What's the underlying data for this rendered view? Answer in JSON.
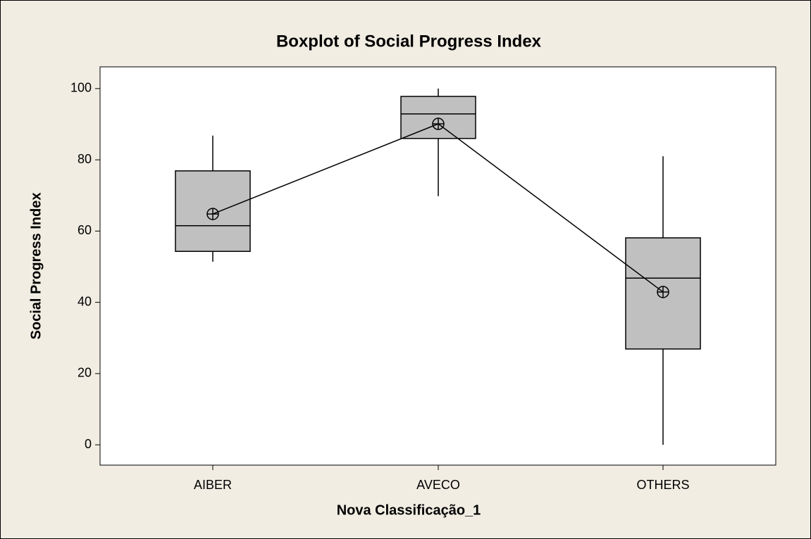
{
  "chart_data": {
    "type": "box",
    "title": "Boxplot of Social Progress Index",
    "xlabel": "Nova Classificação_1",
    "ylabel": "Social Progress Index",
    "categories": [
      "AIBER",
      "AVECO",
      "OTHERS"
    ],
    "boxes": [
      {
        "min": 51.4,
        "q1": 54.3,
        "median": 61.5,
        "q3": 76.9,
        "max": 86.8,
        "mean": 64.8
      },
      {
        "min": 69.8,
        "q1": 86.0,
        "median": 92.9,
        "q3": 97.8,
        "max": 100,
        "mean": 90.1
      },
      {
        "min": 0,
        "q1": 26.9,
        "median": 46.8,
        "q3": 58.1,
        "max": 81.0,
        "mean": 42.9
      }
    ],
    "color": "#c0c0c0",
    "ylim": [
      -5.7,
      106.1
    ],
    "yticks": [
      0,
      20,
      40,
      60,
      80,
      100
    ],
    "mean_connect": true
  }
}
